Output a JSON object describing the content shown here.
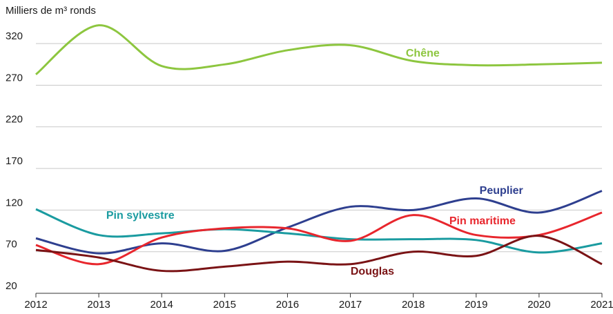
{
  "chart_data": {
    "type": "line",
    "y_axis_label": "Milliers de m³ ronds",
    "categories": [
      "2012",
      "2013",
      "2014",
      "2015",
      "2016",
      "2017",
      "2018",
      "2019",
      "2020",
      "2021"
    ],
    "series": [
      {
        "name": "Chêne",
        "color": "#8dc63f",
        "values": [
          283,
          342,
          293,
          295,
          312,
          318,
          299,
          294,
          295,
          297
        ]
      },
      {
        "name": "Peuplier",
        "color": "#2e3f8f",
        "values": [
          86,
          68,
          80,
          71,
          99,
          124,
          120,
          134,
          117,
          143
        ]
      },
      {
        "name": "Pin sylvestre",
        "color": "#1a9ba0",
        "values": [
          121,
          90,
          92,
          97,
          92,
          85,
          85,
          84,
          69,
          80
        ]
      },
      {
        "name": "Pin maritime",
        "color": "#e8262d",
        "values": [
          78,
          55,
          87,
          98,
          98,
          83,
          114,
          90,
          90,
          117
        ]
      },
      {
        "name": "Douglas",
        "color": "#7a1315",
        "values": [
          72,
          63,
          47,
          52,
          58,
          55,
          70,
          65,
          89,
          55
        ]
      }
    ],
    "ylim": [
      20,
      345
    ],
    "yticks": [
      20,
      70,
      120,
      170,
      220,
      270,
      320
    ],
    "grid": true
  }
}
